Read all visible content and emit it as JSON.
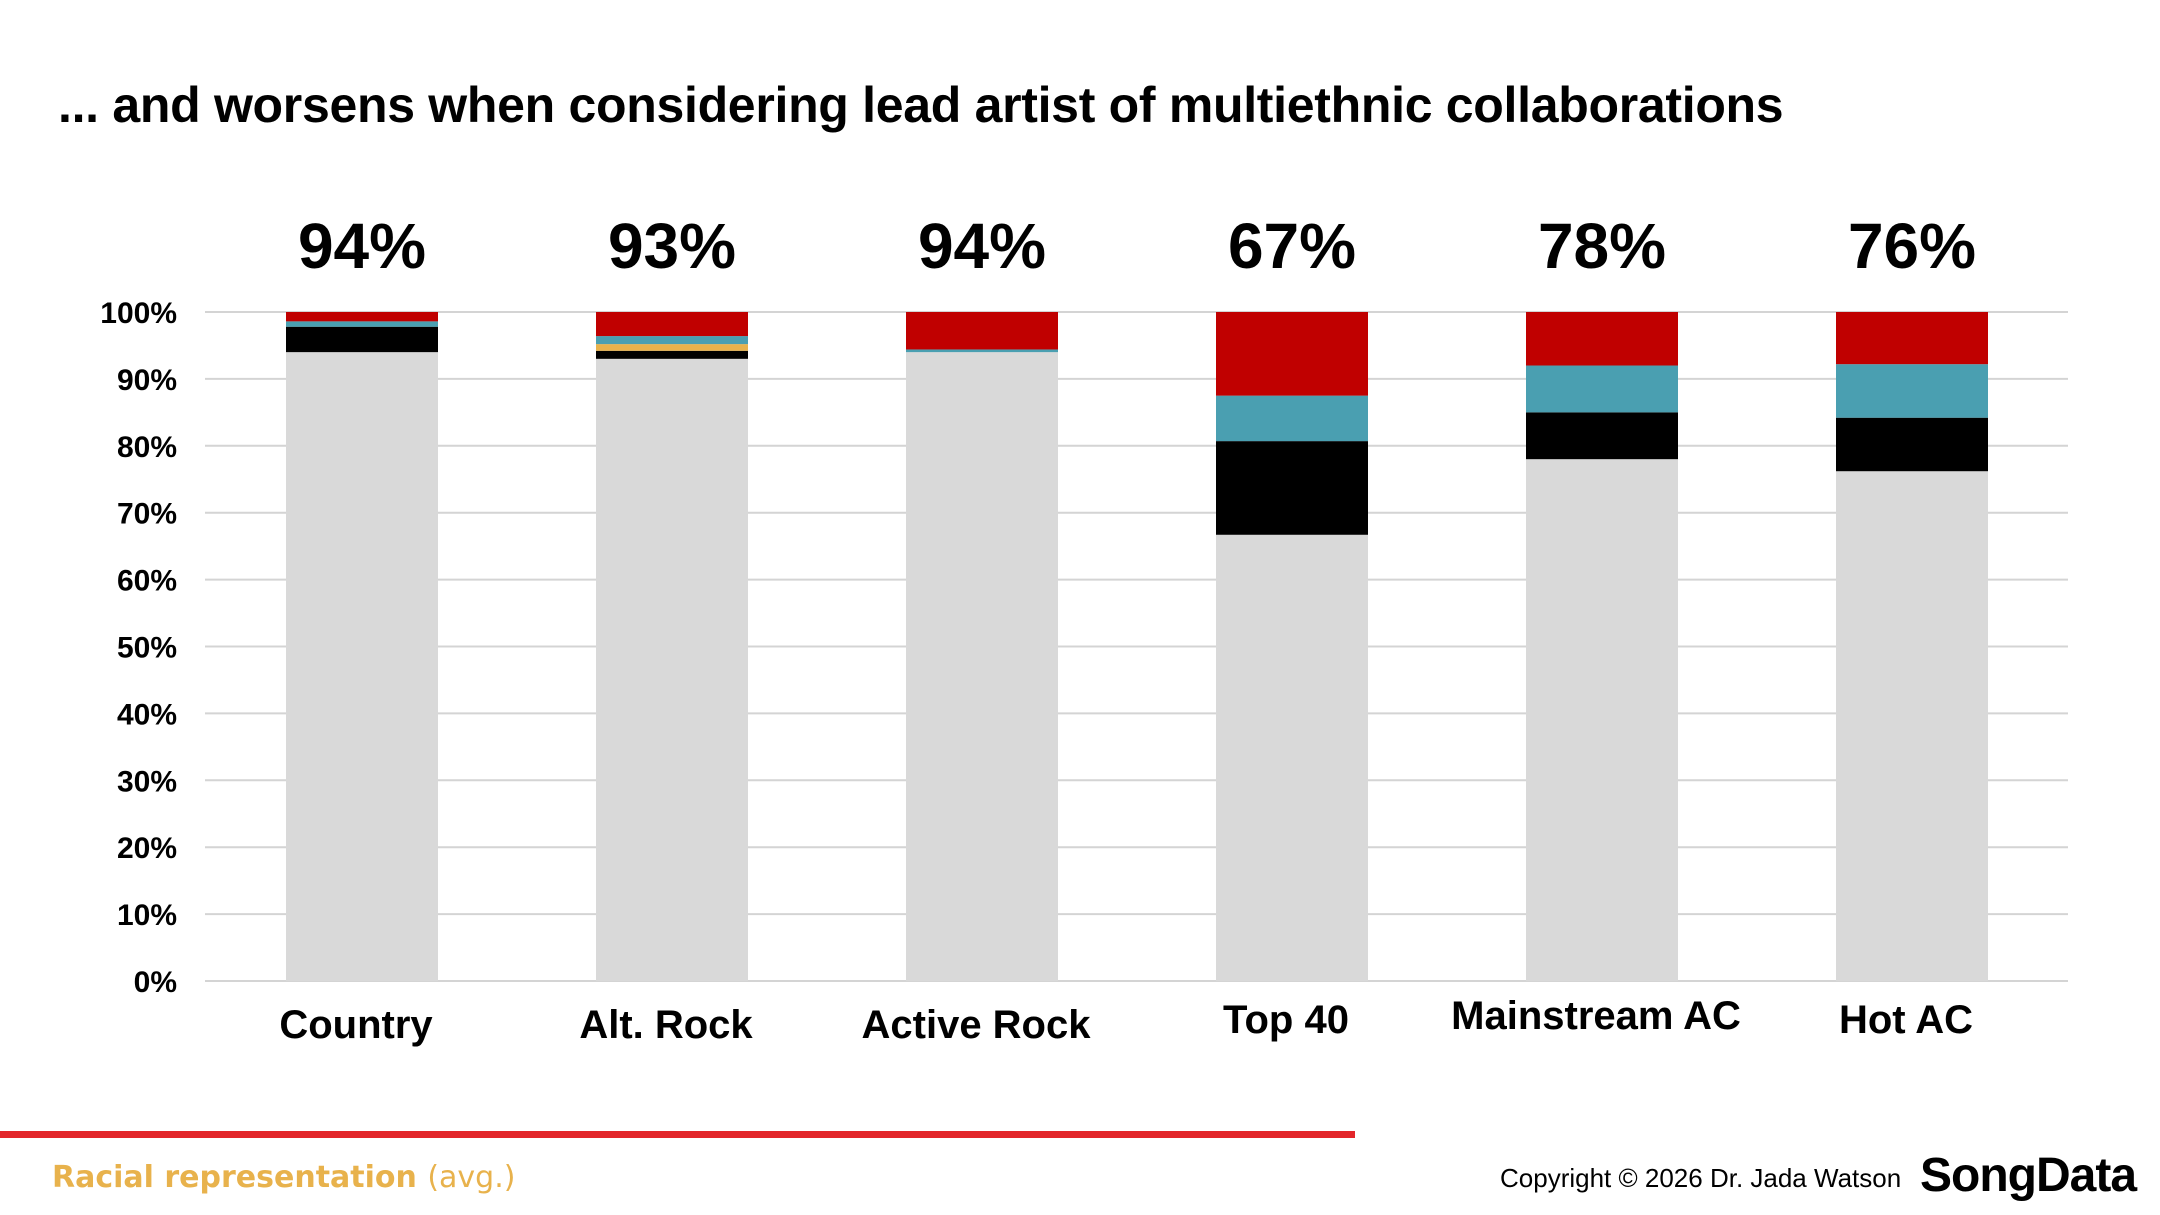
{
  "title": "... and worsens when considering lead artist of multiethnic collaborations",
  "footer": {
    "note": "Racial representation",
    "note_paren": "(avg.)",
    "copyright": "Copyright © 2026 Dr. Jada Watson",
    "brand": "SongData"
  },
  "colors": {
    "white_artists": "#d9d9d9",
    "black": "#000000",
    "teal": "#4a9fb1",
    "gold": "#e8b24c",
    "red": "#c00000",
    "grid": "#d4d4d4",
    "rule": "#e3262a"
  },
  "chart_data": {
    "type": "bar",
    "stacked": true,
    "categories": [
      "Country",
      "Alt. Rock",
      "Active Rock",
      "Top 40",
      "Mainstream AC",
      "Hot AC"
    ],
    "top_labels": [
      "94%",
      "93%",
      "94%",
      "67%",
      "78%",
      "76%"
    ],
    "ylim": [
      0,
      100
    ],
    "yticks": [
      "0%",
      "10%",
      "20%",
      "30%",
      "40%",
      "50%",
      "60%",
      "70%",
      "80%",
      "90%",
      "100%"
    ],
    "grid": true,
    "series": [
      {
        "color": "#d9d9d9",
        "values": [
          94,
          93,
          94,
          66.7,
          78,
          76.2
        ]
      },
      {
        "color": "#000000",
        "values": [
          3.8,
          1.2,
          0,
          14,
          7,
          8
        ]
      },
      {
        "color": "#e8b24c",
        "values": [
          0,
          1,
          0,
          0,
          0,
          0
        ]
      },
      {
        "color": "#4a9fb1",
        "values": [
          0.8,
          1.2,
          0.4,
          6.8,
          7,
          8
        ]
      },
      {
        "color": "#c00000",
        "values": [
          1.4,
          3.6,
          5.6,
          12.5,
          8,
          7.8
        ]
      }
    ]
  }
}
